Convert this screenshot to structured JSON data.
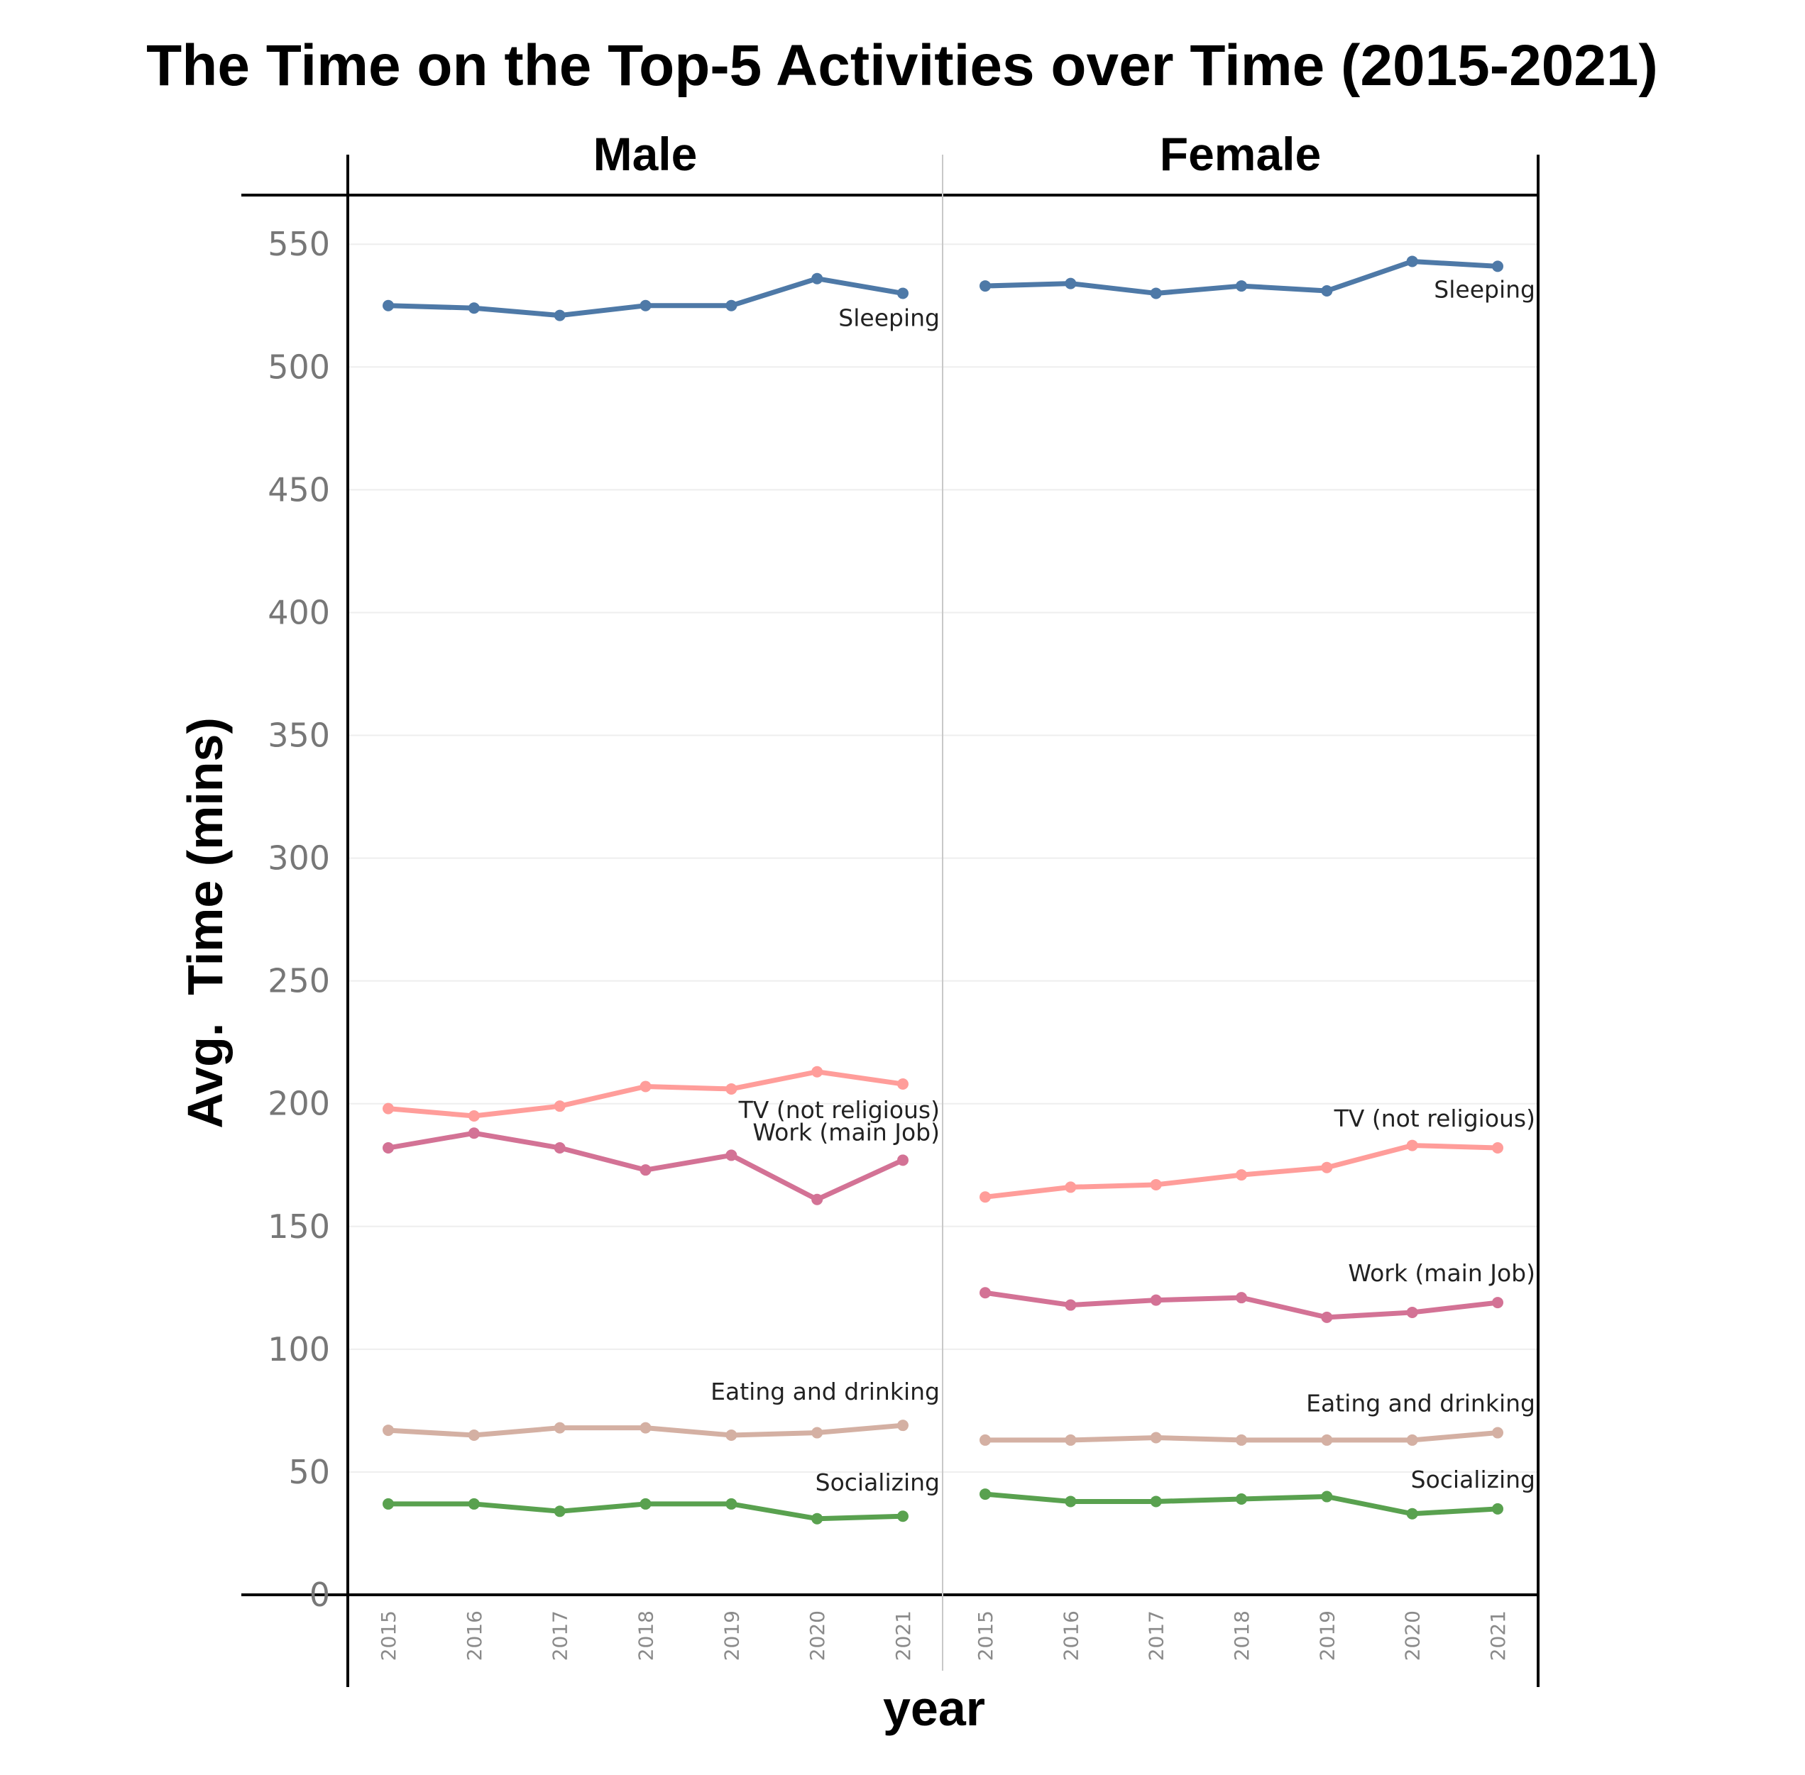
{
  "chart_data": {
    "type": "line",
    "title": "The Time on the Top-5 Activities over Time (2015-2021)",
    "xlabel": "year",
    "ylabel": "Avg.  Time (mins)",
    "ylim": [
      0,
      570
    ],
    "yticks": [
      0,
      50,
      100,
      150,
      200,
      250,
      300,
      350,
      400,
      450,
      500,
      550
    ],
    "grid": true,
    "colors": {
      "Sleeping": "#4e79a7",
      "TV (not religious)": "#ff9d9a",
      "Work (main Job)": "#d37295",
      "Eating and drinking": "#d4b0a3",
      "Socializing": "#59a14f"
    },
    "panels": [
      {
        "name": "Male",
        "x": [
          "2015",
          "2016",
          "2017",
          "2018",
          "2019",
          "2020",
          "2021"
        ],
        "series": [
          {
            "name": "Sleeping",
            "values": [
              525,
              524,
              521,
              525,
              525,
              536,
              530
            ]
          },
          {
            "name": "TV (not religious)",
            "values": [
              198,
              195,
              199,
              207,
              206,
              213,
              208
            ]
          },
          {
            "name": "Work (main Job)",
            "values": [
              182,
              188,
              182,
              173,
              179,
              161,
              177
            ]
          },
          {
            "name": "Eating and drinking",
            "values": [
              67,
              65,
              68,
              68,
              65,
              66,
              69
            ]
          },
          {
            "name": "Socializing",
            "values": [
              37,
              37,
              34,
              37,
              37,
              31,
              32
            ]
          }
        ]
      },
      {
        "name": "Female",
        "x": [
          "2015",
          "2016",
          "2017",
          "2018",
          "2019",
          "2020",
          "2021"
        ],
        "series": [
          {
            "name": "Sleeping",
            "values": [
              533,
              534,
              530,
              533,
              531,
              543,
              541
            ]
          },
          {
            "name": "TV (not religious)",
            "values": [
              162,
              166,
              167,
              171,
              174,
              183,
              182
            ]
          },
          {
            "name": "Work (main Job)",
            "values": [
              123,
              118,
              120,
              121,
              113,
              115,
              119
            ]
          },
          {
            "name": "Eating and drinking",
            "values": [
              63,
              63,
              64,
              63,
              63,
              63,
              66
            ]
          },
          {
            "name": "Socializing",
            "values": [
              41,
              38,
              38,
              39,
              40,
              33,
              35
            ]
          }
        ]
      }
    ]
  }
}
